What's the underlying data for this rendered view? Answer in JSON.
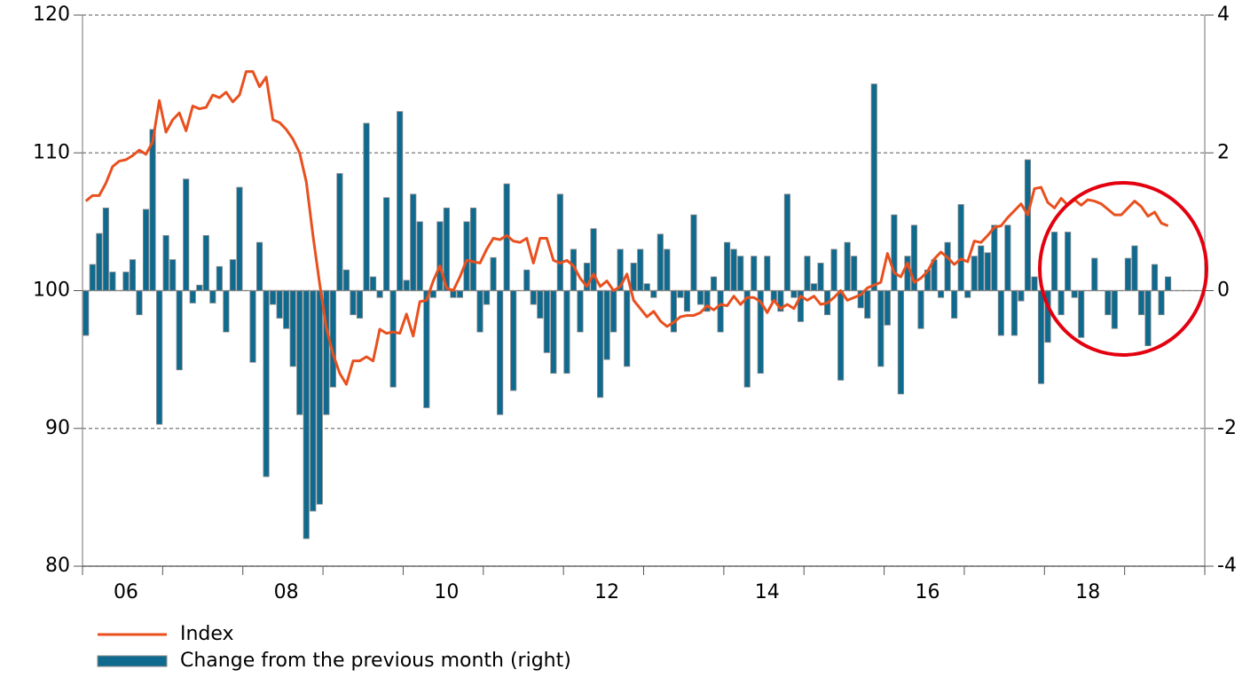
{
  "chart_data": {
    "type": "combo",
    "categories": [
      null,
      null,
      null,
      null,
      null,
      null,
      "06",
      null,
      null,
      null,
      null,
      null,
      null,
      null,
      null,
      null,
      null,
      null,
      null,
      null,
      null,
      null,
      null,
      null,
      null,
      null,
      null,
      null,
      null,
      null,
      "08",
      null,
      null,
      null,
      null,
      null,
      null,
      null,
      null,
      null,
      null,
      null,
      null,
      null,
      null,
      null,
      null,
      null,
      null,
      null,
      null,
      null,
      null,
      null,
      "10",
      null,
      null,
      null,
      null,
      null,
      null,
      null,
      null,
      null,
      null,
      null,
      null,
      null,
      null,
      null,
      null,
      null,
      null,
      null,
      null,
      null,
      null,
      null,
      "12",
      null,
      null,
      null,
      null,
      null,
      null,
      null,
      null,
      null,
      null,
      null,
      null,
      null,
      null,
      null,
      null,
      null,
      null,
      null,
      null,
      null,
      null,
      null,
      "14",
      null,
      null,
      null,
      null,
      null,
      null,
      null,
      null,
      null,
      null,
      null,
      null,
      null,
      null,
      null,
      null,
      null,
      null,
      null,
      null,
      null,
      null,
      null,
      "16",
      null,
      null,
      null,
      null,
      null,
      null,
      null,
      null,
      null,
      null,
      null,
      null,
      null,
      null,
      null,
      null,
      null,
      null,
      null,
      null,
      null,
      null,
      null,
      "18",
      null,
      null,
      null,
      null,
      null,
      null,
      null,
      null,
      null,
      null,
      null,
      null
    ],
    "series": [
      {
        "name": "Index",
        "type": "line",
        "color": "#e8501e",
        "values": [
          106.5,
          106.9,
          106.9,
          107.8,
          109.0,
          109.4,
          109.5,
          109.8,
          110.2,
          109.9,
          110.8,
          113.8,
          111.5,
          112.4,
          112.9,
          111.6,
          113.4,
          113.2,
          113.3,
          114.2,
          114.0,
          114.4,
          113.7,
          114.2,
          115.9,
          115.9,
          114.8,
          115.5,
          112.4,
          112.2,
          111.7,
          111.0,
          110.0,
          107.9,
          104.0,
          100.5,
          97.3,
          95.4,
          94.0,
          93.2,
          94.9,
          94.9,
          95.2,
          94.9,
          97.2,
          96.9,
          97.0,
          96.9,
          98.3,
          96.7,
          99.2,
          99.3,
          100.7,
          101.8,
          100.2,
          100.0,
          101.0,
          102.2,
          102.1,
          102.0,
          103.0,
          103.8,
          103.7,
          104.0,
          103.6,
          103.5,
          103.8,
          102.0,
          103.8,
          103.8,
          102.2,
          102.0,
          102.2,
          101.8,
          100.9,
          100.3,
          101.2,
          100.3,
          100.7,
          100.0,
          100.3,
          101.2,
          99.3,
          98.7,
          98.1,
          98.5,
          97.8,
          97.4,
          97.7,
          98.1,
          98.2,
          98.2,
          98.4,
          98.9,
          98.6,
          99.0,
          98.9,
          99.6,
          99.0,
          99.5,
          99.5,
          99.2,
          98.4,
          99.3,
          98.7,
          99.0,
          98.7,
          99.6,
          99.3,
          99.6,
          99.0,
          99.1,
          99.5,
          100.0,
          99.3,
          99.5,
          99.7,
          100.2,
          100.4,
          100.6,
          102.7,
          101.3,
          101.0,
          102.0,
          100.6,
          100.9,
          101.4,
          102.3,
          102.8,
          102.4,
          101.9,
          102.3,
          102.1,
          103.6,
          103.5,
          104.0,
          104.6,
          104.7,
          105.3,
          105.8,
          106.3,
          105.5,
          107.4,
          107.5,
          106.4,
          106.0,
          106.7,
          106.2,
          106.6,
          106.2,
          106.6,
          106.5,
          106.3,
          105.9,
          105.5,
          105.5,
          106.0,
          106.5,
          106.1,
          105.4,
          105.7,
          104.9,
          104.7
        ]
      },
      {
        "name": "Change from the previous month (right)",
        "type": "bar",
        "axis": "y2",
        "color": "#0f6a8f",
        "values": [
          -0.65,
          0.38,
          0.83,
          1.2,
          0.27,
          0,
          0.27,
          0.45,
          -0.35,
          1.18,
          2.34,
          -1.94,
          0.8,
          0.45,
          -1.15,
          1.62,
          -0.18,
          0.08,
          0.8,
          -0.18,
          0.35,
          -0.6,
          0.45,
          1.5,
          0,
          -1.04,
          0.7,
          -2.7,
          -0.2,
          -0.4,
          -0.55,
          -1.1,
          -1.8,
          -3.6,
          -3.2,
          -3.1,
          -1.8,
          -1.4,
          1.7,
          0.3,
          -0.35,
          -0.4,
          2.43,
          0.2,
          -0.1,
          1.35,
          -1.4,
          2.6,
          0.15,
          1.4,
          1.0,
          -1.7,
          -0.1,
          1.0,
          1.2,
          -0.1,
          -0.1,
          1.0,
          1.2,
          -0.6,
          -0.2,
          0.48,
          -1.8,
          1.55,
          -1.45,
          0,
          0.3,
          -0.2,
          -0.4,
          -0.9,
          -1.2,
          1.4,
          -1.2,
          0.6,
          -0.6,
          0.4,
          0.9,
          -1.55,
          -1.0,
          -0.6,
          0.6,
          -1.1,
          0.4,
          0.6,
          0.1,
          -0.1,
          0.82,
          0.6,
          -0.6,
          -0.1,
          -0.3,
          1.1,
          -0.2,
          -0.3,
          0.2,
          -0.6,
          0.7,
          0.6,
          0.5,
          -1.4,
          0.5,
          -1.2,
          0.5,
          -0.15,
          -0.3,
          1.4,
          -0.1,
          -0.45,
          0.5,
          0.1,
          0.4,
          -0.35,
          0.6,
          -1.3,
          0.7,
          0.5,
          -0.25,
          -0.4,
          3.0,
          -1.1,
          -0.5,
          1.1,
          -1.5,
          0.5,
          0.95,
          -0.55,
          0.3,
          0.45,
          -0.1,
          0.7,
          -0.4,
          1.25,
          -0.1,
          0.5,
          0.65,
          0.55,
          0.95,
          -0.65,
          0.95,
          -0.65,
          -0.15,
          1.9,
          0.2,
          -1.35,
          -0.75,
          0.85,
          -0.35,
          0.85,
          -0.1,
          -0.68,
          0,
          0.47,
          0,
          -0.35,
          -0.55,
          0,
          0.47,
          0.65,
          -0.35,
          -0.8,
          0.38,
          -0.35,
          0.2
        ]
      }
    ],
    "ylim": [
      80,
      120
    ],
    "yticks": [
      80,
      90,
      100,
      110,
      120
    ],
    "y2lim": [
      -4,
      4
    ],
    "y2ticks": [
      -4,
      -2,
      0,
      2,
      4
    ],
    "grid": true,
    "legend": "bottom-left"
  }
}
